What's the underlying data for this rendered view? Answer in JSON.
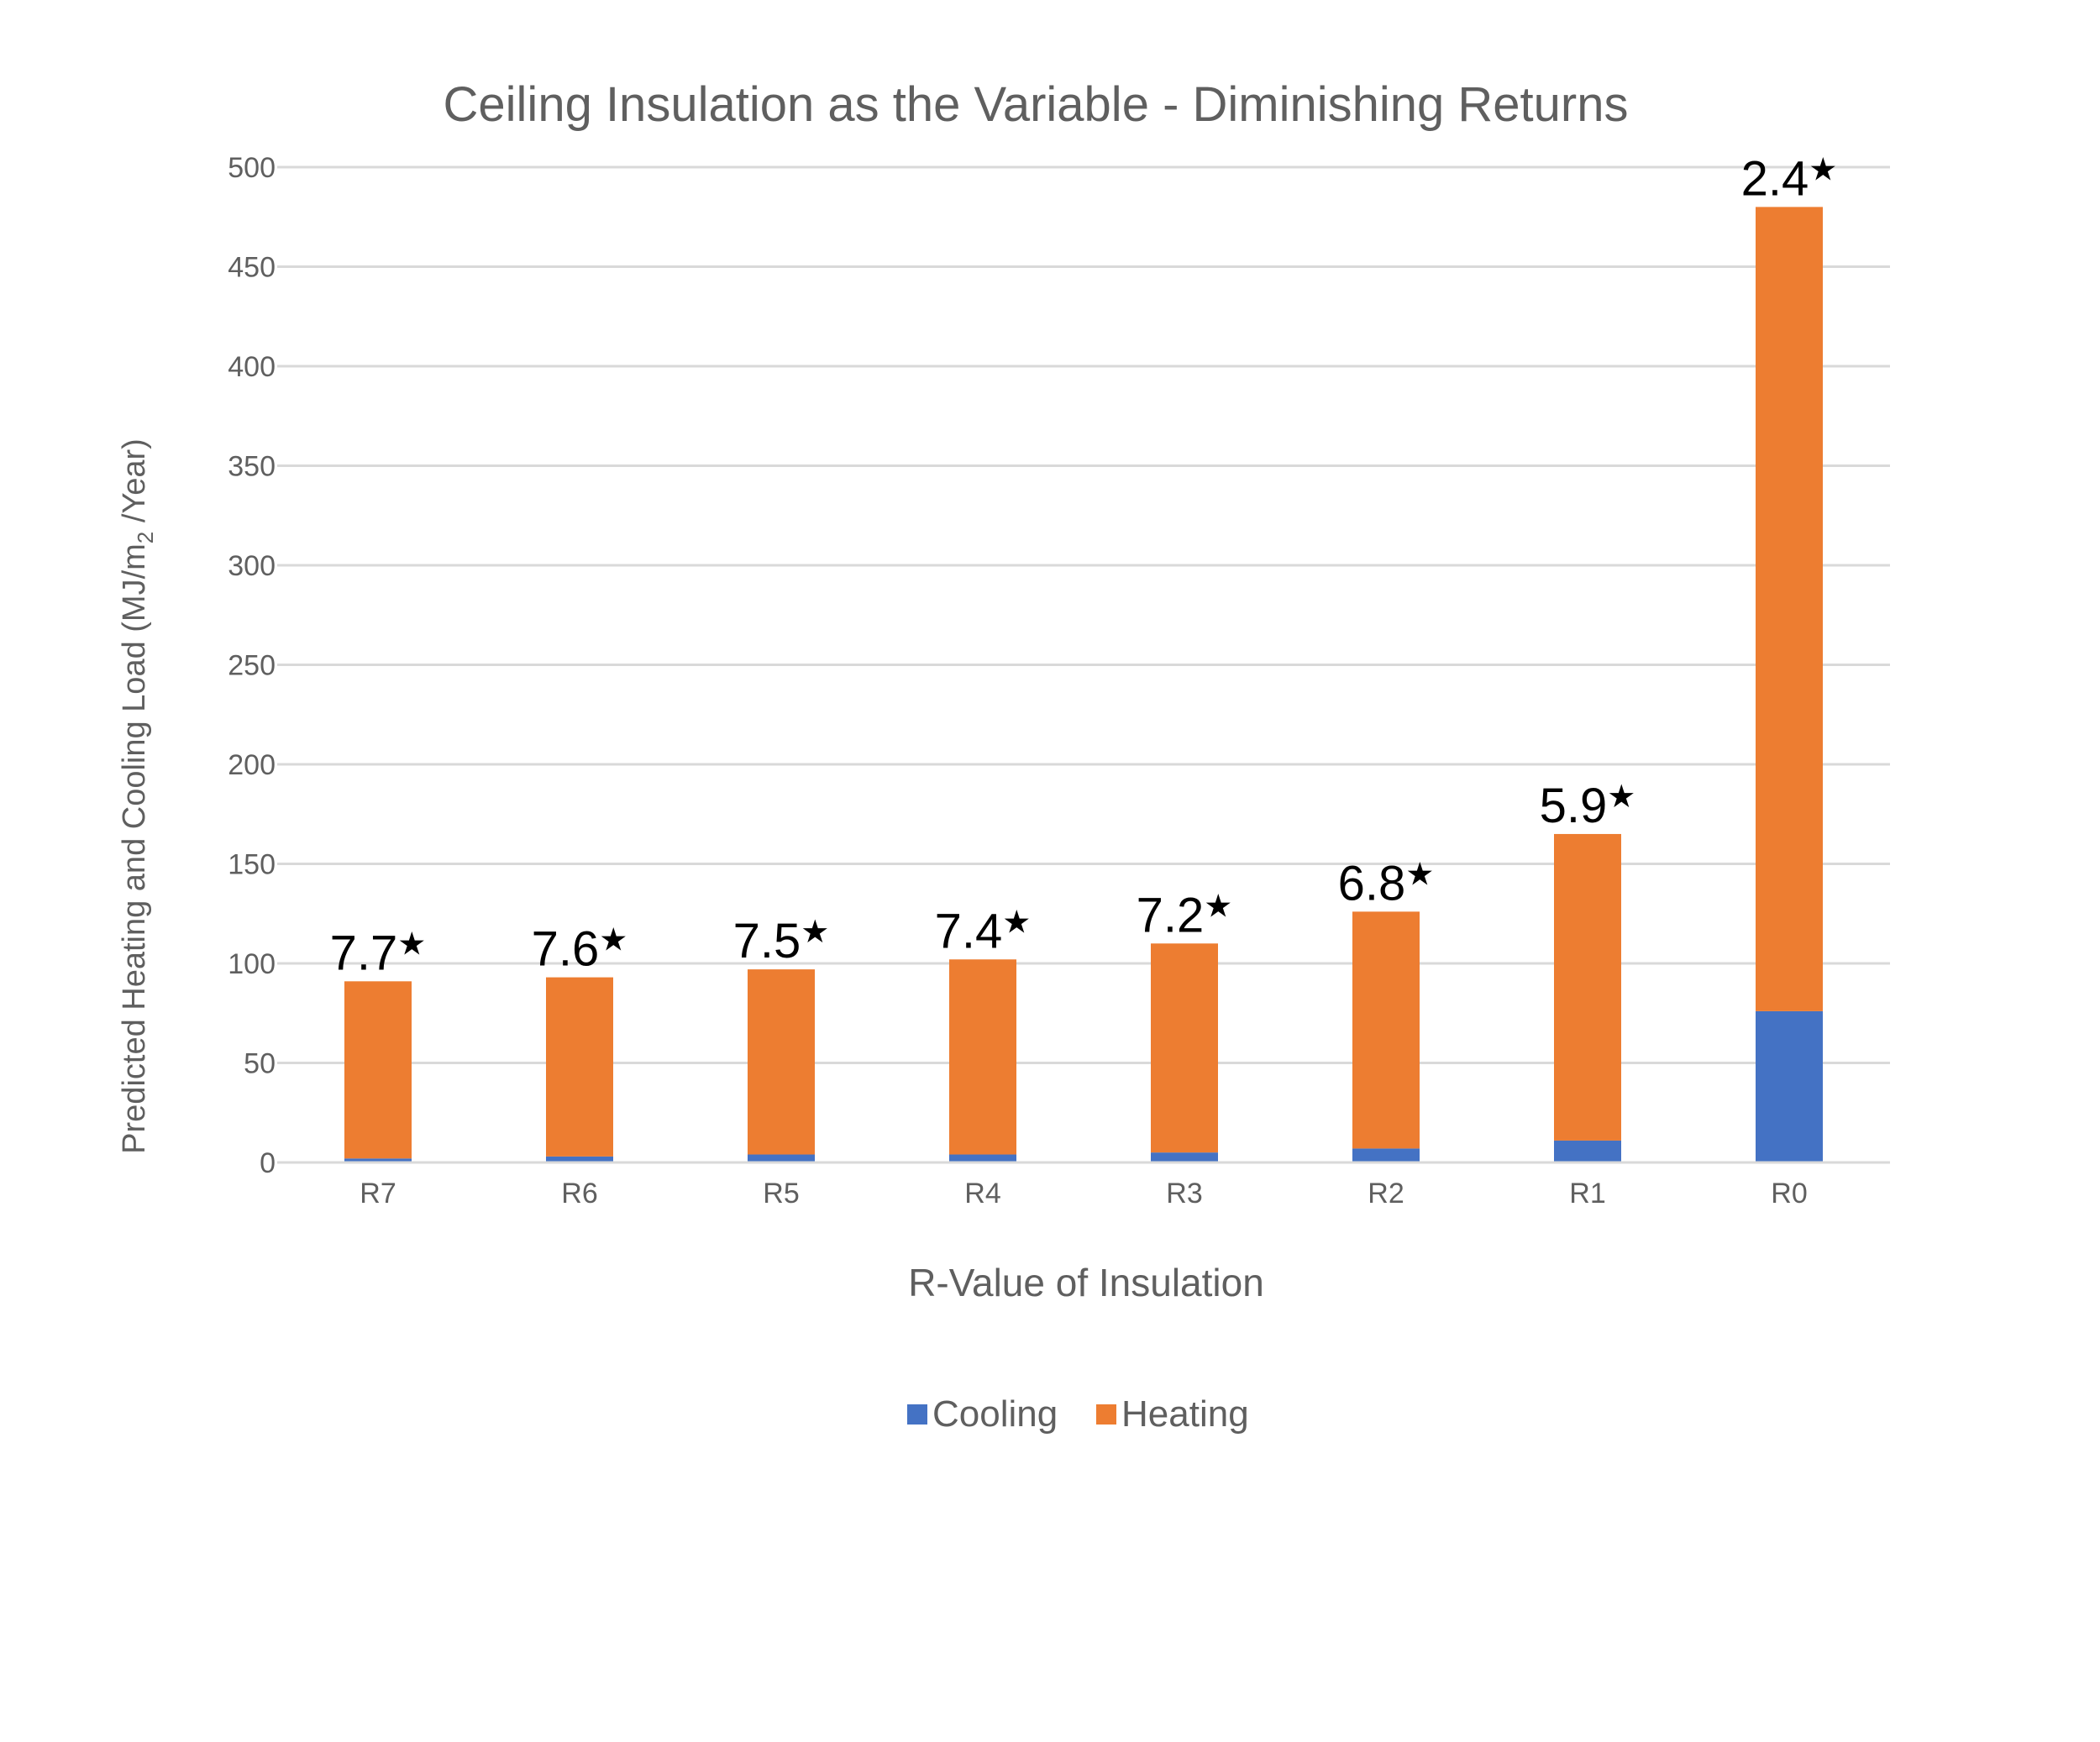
{
  "chart_data": {
    "type": "bar",
    "stacked": true,
    "title": "Ceiling Insulation as the Variable - Diminishing Returns",
    "xlabel": "R-Value of Insulation",
    "ylabel": {
      "prefix": "Predicted Heating and Cooling Load (MJ/m",
      "subscript": "2",
      "suffix": " /Year)"
    },
    "ylim": [
      0,
      500
    ],
    "yticks": [
      0,
      50,
      100,
      150,
      200,
      250,
      300,
      350,
      400,
      450,
      500
    ],
    "grid": true,
    "legend_position": "bottom",
    "categories": [
      "R7",
      "R6",
      "R5",
      "R4",
      "R3",
      "R2",
      "R1",
      "R0"
    ],
    "series": [
      {
        "name": "Cooling",
        "color": "#4472c4",
        "values": [
          2,
          3,
          4,
          4,
          5,
          7,
          11,
          76
        ]
      },
      {
        "name": "Heating",
        "color": "#ed7d31",
        "values": [
          89,
          90,
          93,
          98,
          105,
          119,
          154,
          404
        ]
      }
    ],
    "annotations": [
      "7.7",
      "7.6",
      "7.5",
      "7.4",
      "7.2",
      "6.8",
      "5.9",
      "2.4"
    ],
    "annotation_symbol": "★"
  }
}
